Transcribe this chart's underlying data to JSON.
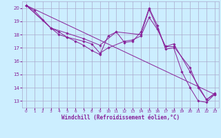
{
  "xlabel": "Windchill (Refroidissement éolien,°C)",
  "bg_color": "#cceeff",
  "grid_color": "#aaaacc",
  "line_color": "#882299",
  "xlim": [
    -0.5,
    23.5
  ],
  "ylim": [
    12.5,
    20.5
  ],
  "xticks": [
    0,
    1,
    2,
    3,
    4,
    5,
    6,
    7,
    8,
    9,
    10,
    11,
    12,
    13,
    14,
    15,
    16,
    17,
    18,
    19,
    20,
    21,
    22,
    23
  ],
  "yticks": [
    13,
    14,
    15,
    16,
    17,
    18,
    19,
    20
  ],
  "line_data": [
    {
      "x": [
        0,
        1,
        3,
        4,
        5,
        6,
        7,
        8,
        9,
        10,
        11,
        12,
        13,
        14,
        15,
        16,
        17,
        18,
        19,
        20,
        21,
        22,
        23
      ],
      "y": [
        20.2,
        19.8,
        18.5,
        18.0,
        17.8,
        17.5,
        17.2,
        16.8,
        16.5,
        17.9,
        18.2,
        17.4,
        17.5,
        18.2,
        20.0,
        18.7,
        16.9,
        17.0,
        15.2,
        14.0,
        13.0,
        12.9,
        13.5
      ]
    },
    {
      "x": [
        0,
        2,
        3,
        4,
        5,
        7,
        8,
        9,
        10,
        12,
        13,
        14,
        15,
        16,
        17,
        18,
        20,
        21,
        22,
        23
      ],
      "y": [
        20.2,
        19.1,
        18.5,
        18.2,
        17.8,
        17.5,
        17.3,
        16.6,
        17.0,
        17.5,
        17.6,
        17.9,
        19.3,
        18.4,
        17.1,
        17.1,
        15.5,
        14.0,
        13.1,
        13.5
      ]
    },
    {
      "x": [
        0,
        3,
        5,
        7,
        9,
        11,
        14,
        15,
        17,
        18,
        20,
        22,
        23
      ],
      "y": [
        20.2,
        18.5,
        18.1,
        17.7,
        17.2,
        18.2,
        18.0,
        19.9,
        17.1,
        17.3,
        15.2,
        13.1,
        13.6
      ]
    },
    {
      "x": [
        0,
        23
      ],
      "y": [
        20.2,
        13.5
      ]
    }
  ]
}
